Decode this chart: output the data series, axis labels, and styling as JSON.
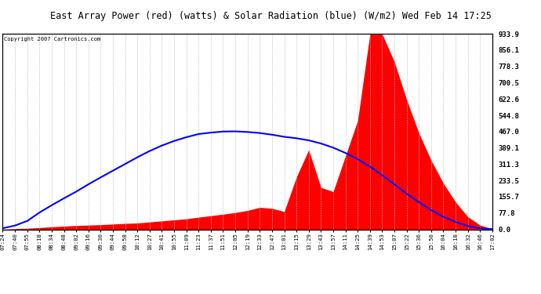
{
  "title": "East Array Power (red) (watts) & Solar Radiation (blue) (W/m2) Wed Feb 14 17:25",
  "copyright": "Copyright 2007 Cartronics.com",
  "y_ticks": [
    0.0,
    77.8,
    155.7,
    233.5,
    311.3,
    389.1,
    467.0,
    544.8,
    622.6,
    700.5,
    778.3,
    856.1,
    933.9
  ],
  "ymax": 933.9,
  "background_color": "#ffffff",
  "plot_bg_color": "#ffffff",
  "grid_color": "#bbbbbb",
  "x_labels": [
    "07:24",
    "07:40",
    "07:55",
    "08:18",
    "08:34",
    "08:48",
    "09:02",
    "09:16",
    "09:30",
    "09:44",
    "09:58",
    "10:12",
    "10:27",
    "10:41",
    "10:55",
    "11:09",
    "11:23",
    "11:37",
    "11:51",
    "12:05",
    "12:19",
    "12:33",
    "12:47",
    "13:01",
    "13:15",
    "13:29",
    "13:43",
    "13:57",
    "14:11",
    "14:25",
    "14:39",
    "14:53",
    "15:07",
    "15:22",
    "15:36",
    "15:50",
    "16:04",
    "16:18",
    "16:32",
    "16:46",
    "17:02"
  ],
  "solar_values": [
    5,
    18,
    40,
    80,
    115,
    148,
    180,
    215,
    248,
    280,
    312,
    344,
    374,
    400,
    422,
    440,
    455,
    462,
    467,
    468,
    465,
    460,
    452,
    442,
    435,
    425,
    410,
    390,
    365,
    335,
    300,
    258,
    215,
    170,
    130,
    92,
    60,
    35,
    16,
    5,
    1
  ],
  "power_values": [
    0,
    3,
    5,
    8,
    12,
    15,
    18,
    20,
    22,
    25,
    28,
    30,
    35,
    40,
    45,
    50,
    58,
    65,
    72,
    80,
    90,
    105,
    100,
    85,
    250,
    380,
    200,
    180,
    350,
    520,
    933,
    933,
    800,
    620,
    460,
    330,
    220,
    130,
    60,
    20,
    2
  ]
}
